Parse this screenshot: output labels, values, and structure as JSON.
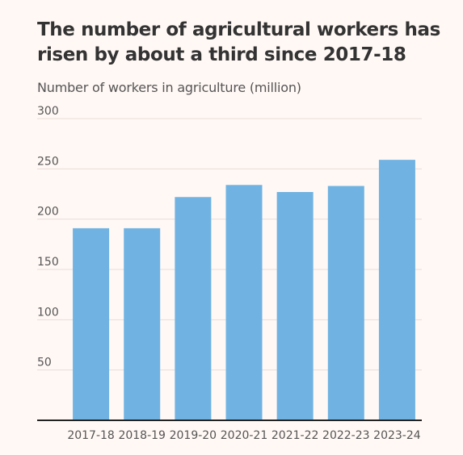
{
  "chart_data": {
    "type": "bar",
    "title": "The number of agricultural workers has risen by about a third since 2017-18",
    "subtitle": "Number of workers in agriculture (million)",
    "categories": [
      "2017-18",
      "2018-19",
      "2019-20",
      "2020-21",
      "2021-22",
      "2022-23",
      "2023-24"
    ],
    "values": [
      191,
      191,
      222,
      234,
      227,
      233,
      259
    ],
    "ylim": [
      0,
      300
    ],
    "yticks": [
      50,
      100,
      150,
      200,
      250,
      300
    ],
    "grid": true,
    "legend": "none",
    "colors": {
      "bar": "#70b3e3",
      "grid": "#e8ddd8",
      "axis": "#222222",
      "background": "#fff8f5"
    }
  }
}
